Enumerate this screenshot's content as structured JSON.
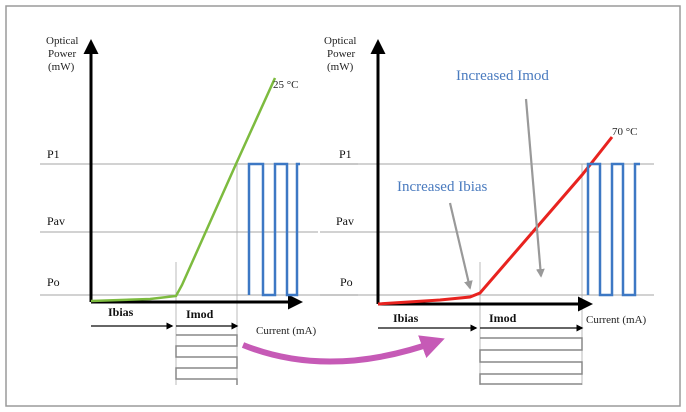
{
  "left_panel": {
    "y_axis_label": [
      "Optical",
      "Power",
      "(mW)"
    ],
    "temperature": "25 °C",
    "levels": {
      "p1": "P1",
      "pav": "Pav",
      "po": "Po"
    },
    "ibias_label": "Ibias",
    "imod_label": "Imod",
    "x_axis_label": "Current (mA)"
  },
  "right_panel": {
    "y_axis_label": [
      "Optical",
      "Power",
      "(mW)"
    ],
    "temperature": "70 °C",
    "levels": {
      "p1": "P1",
      "pav": "Pav",
      "po": "Po"
    },
    "ibias_label": "Ibias",
    "imod_label": "Imod",
    "x_axis_label": "Current (mA)",
    "callout_imod": "Increased Imod",
    "callout_ibias": "Increased Ibias"
  },
  "colors": {
    "curve_25c": "#7dbb3f",
    "curve_70c": "#e8231f",
    "pulse_blue": "#3d78c4",
    "arrow_magenta": "#c65ab6",
    "callout_text": "#4a7bbf"
  }
}
